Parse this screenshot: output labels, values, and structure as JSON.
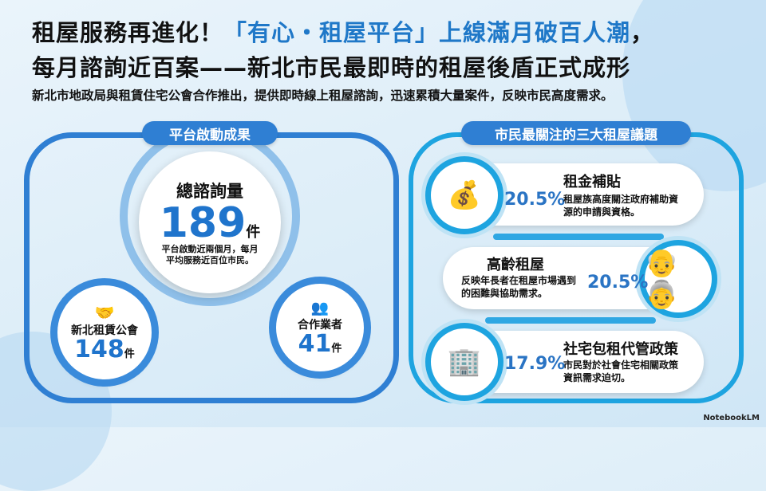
{
  "header": {
    "title_line1_prefix": "租屋服務再進化！",
    "title_line1_highlight": "「有心・租屋平台」上線滿月破百人潮",
    "title_line1_suffix": "，",
    "title_line2": "每月諮詢近百案——新北市民最即時的租屋後盾正式成形",
    "subtitle": "新北市地政局與租賃住宅公會合作推出，提供即時線上租屋諮詢，迅速累積大量案件，反映市民高度需求。"
  },
  "left": {
    "heading": "平台啟動成果",
    "total": {
      "label": "總諮詢量",
      "value": "189",
      "unit": "件",
      "note_line1": "平台啟動近兩個月，每月",
      "note_line2": "平均服務近百位市民。"
    },
    "association": {
      "label": "新北租賃公會",
      "value": "148",
      "unit": "件",
      "icon": "handshake-building-icon"
    },
    "partners": {
      "label": "合作業者",
      "value": "41",
      "unit": "件",
      "icon": "people-exchange-icon"
    }
  },
  "right": {
    "heading": "市民最關注的三大租屋議題",
    "issues": [
      {
        "title": "租金補貼",
        "percent": "20.5%",
        "desc_line1": "租屋族高度關注政府補助資",
        "desc_line2": "源的申請與資格。",
        "icon": "coins-arrow-icon"
      },
      {
        "title": "高齡租屋",
        "percent": "20.5%",
        "desc_line1": "反映年長者在租屋市場遇到",
        "desc_line2": "的困難與協助需求。",
        "icon": "elderly-couple-house-icon"
      },
      {
        "title": "社宅包租代管政策",
        "percent": "17.9%",
        "desc_line1": "市民對於社會住宅相關政策",
        "desc_line2": "資訊需求迫切。",
        "icon": "building-heart-icon"
      }
    ]
  },
  "watermark": "NotebookLM",
  "colors": {
    "primary": "#2f7fd3",
    "accent": "#1ea4e0",
    "highlight": "#1f78c8"
  }
}
